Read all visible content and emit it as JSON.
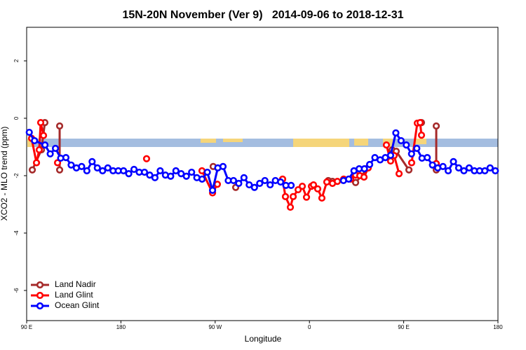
{
  "chart_data": {
    "type": "line",
    "title": "15N-20N November (Ver 9)   2014-09-06 to 2018-12-31",
    "x_label": "Longitude",
    "y_label": "XCO2 - MLO trend (ppm)",
    "xlim": [
      90,
      540
    ],
    "ylim": [
      -7.05,
      3.17
    ],
    "xticks": [
      {
        "value": 90,
        "label": "90 E"
      },
      180,
      {
        "value": 270,
        "label": "90 W"
      },
      {
        "value": 360,
        "label": "0"
      },
      {
        "value": 450,
        "label": "90 E"
      },
      {
        "value": 540,
        "label": "180"
      }
    ],
    "yticks": [
      -6,
      -4,
      -2,
      0,
      2
    ],
    "legend": "bottomleft",
    "series": [
      {
        "name": "Land Nadir",
        "color": "#a52a2a",
        "x": [
          95.4,
          104.1,
          107.4,
          null,
          121.5,
          121.5,
          null,
          268.1,
          null,
          289.6,
          null,
          378,
          382,
          null,
          404.1,
          416,
          null,
          438.9,
          442.9,
          455,
          null,
          467,
          null,
          481.1,
          481.1
        ],
        "values": [
          -1.8,
          -1.1,
          -0.15,
          null,
          -0.27,
          -1.8,
          null,
          -1.68,
          null,
          -2.41,
          null,
          -2.17,
          -2.2,
          null,
          -2.24,
          -1.73,
          null,
          -1.1,
          -1.15,
          -1.8,
          null,
          -0.15,
          null,
          -0.27,
          -1.8
        ]
      },
      {
        "name": "Land Glint",
        "color": "#ff0000",
        "x": [
          94.7,
          99.4,
          102,
          103.4,
          106.1,
          null,
          119.5,
          null,
          204.5,
          null,
          257.4,
          267.5,
          272.1,
          null,
          334.4,
          337.1,
          341.8,
          344.5,
          349.2,
          353.2,
          357.2,
          361.9,
          363.9,
          367.9,
          371.9,
          376.6,
          382,
          386.7,
          392.7,
          399.4,
          404.1,
          408.1,
          412.1,
          416.1,
          null,
          433.5,
          437.5,
          440.9,
          445.6,
          null,
          457.6,
          463,
          465.7,
          467,
          null,
          481.1
        ],
        "values": [
          -0.7,
          -1.55,
          -1.1,
          -0.15,
          -0.6,
          null,
          -1.55,
          null,
          -1.41,
          null,
          -1.83,
          -2.6,
          -2.3,
          null,
          -2.12,
          -2.73,
          -3.1,
          -2.73,
          -2.49,
          -2.37,
          -2.75,
          -2.37,
          -2.32,
          -2.46,
          -2.78,
          -2.22,
          -2.27,
          -2.2,
          -2.12,
          -2.12,
          -1.98,
          -2.0,
          -2.05,
          -1.73,
          null,
          -0.93,
          -1.49,
          -1.3,
          -1.93,
          null,
          -1.55,
          -0.17,
          -0.15,
          -0.59,
          null,
          -1.58
        ]
      },
      {
        "name": "Ocean Glint",
        "color": "#0000ff",
        "x": [
          92.5,
          97.5,
          107.5,
          112.5,
          117.5,
          122.5,
          127.5,
          132.5,
          137.5,
          142.5,
          147.5,
          152.5,
          157.5,
          162.5,
          167.5,
          172.5,
          177.5,
          182.5,
          187.5,
          192.5,
          197.5,
          202.5,
          207.5,
          212.5,
          217.5,
          222.5,
          227.5,
          232.5,
          237.5,
          242.5,
          247.5,
          252.5,
          257.5,
          262.5,
          267.5,
          272.5,
          277.5,
          282.5,
          287.5,
          292.5,
          297.5,
          302.5,
          307.5,
          312.5,
          317.5,
          322.5,
          327.5,
          332.5,
          337.5,
          342.5,
          null,
          392.5,
          397.5,
          402.5,
          407.5,
          412.5,
          417.5,
          422.5,
          427.5,
          432.5,
          437.5,
          442.5,
          447.5,
          452.5,
          457.5,
          462.5,
          467.5,
          472.5,
          477.5,
          482.5,
          487.5,
          492.5,
          497.5,
          502.5,
          507.5,
          512.5,
          517.5,
          522.5,
          527.5,
          532.5,
          537.5
        ],
        "values": [
          -0.49,
          -0.78,
          -0.93,
          -1.24,
          -1.05,
          -1.39,
          -1.37,
          -1.63,
          -1.73,
          -1.68,
          -1.83,
          -1.51,
          -1.73,
          -1.83,
          -1.73,
          -1.83,
          -1.83,
          -1.83,
          -1.93,
          -1.78,
          -1.88,
          -1.88,
          -1.98,
          -2.07,
          -1.83,
          -1.98,
          -2.02,
          -1.83,
          -1.93,
          -2.02,
          -1.88,
          -2.07,
          -2.12,
          -1.88,
          -2.51,
          -1.73,
          -1.68,
          -2.17,
          -2.17,
          -2.27,
          -2.07,
          -2.32,
          -2.41,
          -2.27,
          -2.17,
          -2.32,
          -2.17,
          -2.22,
          -2.34,
          -2.34,
          null,
          -2.17,
          -2.12,
          -1.83,
          -1.76,
          -1.76,
          -1.61,
          -1.37,
          -1.45,
          -1.37,
          -1.29,
          -0.51,
          -0.78,
          -0.93,
          -1.24,
          -1.05,
          -1.39,
          -1.37,
          -1.63,
          -1.73,
          -1.68,
          -1.83,
          -1.51,
          -1.73,
          -1.83,
          -1.73,
          -1.83,
          -1.83,
          -1.83,
          -1.73,
          -1.83
        ]
      }
    ]
  }
}
